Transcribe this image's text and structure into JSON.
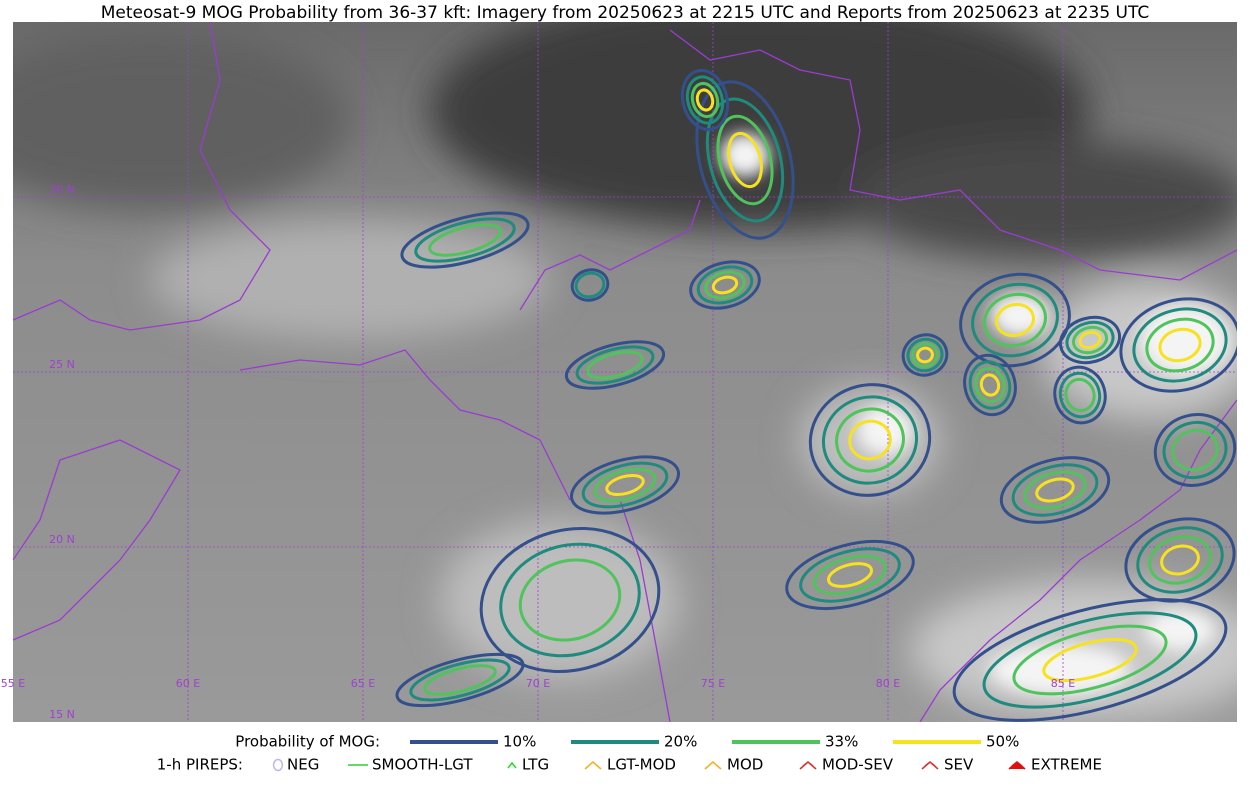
{
  "title": "Meteosat-9 MOG Probability from 36-37 kft: Imagery from 20250623 at 2215 UTC and Reports from 20250623 at 2235 UTC",
  "grid": {
    "lat_labels": [
      "30 N",
      "25 N",
      "20 N",
      "15 N"
    ],
    "lon_labels": [
      "55 E",
      "60 E",
      "65 E",
      "70 E",
      "75 E",
      "80 E",
      "85 E"
    ]
  },
  "legend": {
    "probability": {
      "label": "Probability of MOG:",
      "items": [
        {
          "label": "10%",
          "color": "#34508c"
        },
        {
          "label": "20%",
          "color": "#1f8a7e"
        },
        {
          "label": "33%",
          "color": "#4fc45c"
        },
        {
          "label": "50%",
          "color": "#f7e21f"
        }
      ]
    },
    "pireps": {
      "label": "1-h PIREPS:",
      "items": [
        {
          "label": "NEG",
          "color": "#b8b8f0"
        },
        {
          "label": "SMOOTH-LGT",
          "color": "#33cc33"
        },
        {
          "label": "LTG",
          "color": "#22dd22"
        },
        {
          "label": "LGT-MOD",
          "color": "#f5b020"
        },
        {
          "label": "MOD",
          "color": "#f5b020"
        },
        {
          "label": "MOD-SEV",
          "color": "#e03030"
        },
        {
          "label": "SEV",
          "color": "#e03030"
        },
        {
          "label": "EXTREME",
          "color": "#e01010"
        }
      ]
    }
  }
}
